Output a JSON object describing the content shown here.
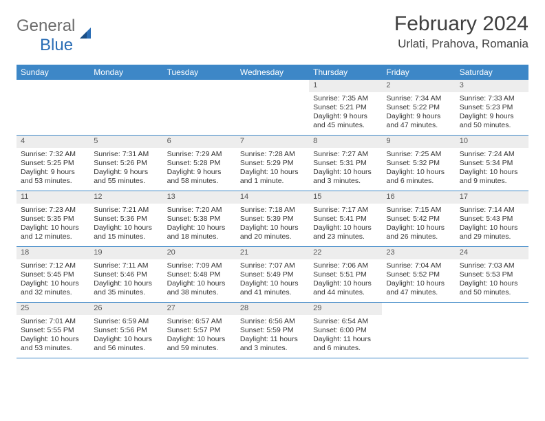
{
  "logo": {
    "text1": "General",
    "text2": "Blue"
  },
  "title": "February 2024",
  "location": "Urlati, Prahova, Romania",
  "colors": {
    "header_bg": "#3d87c7",
    "daynum_bg": "#ededed",
    "row_border": "#3d87c7",
    "logo_gray": "#6b6b6b",
    "logo_blue": "#2a6db5"
  },
  "weekdays": [
    "Sunday",
    "Monday",
    "Tuesday",
    "Wednesday",
    "Thursday",
    "Friday",
    "Saturday"
  ],
  "weeks": [
    [
      null,
      null,
      null,
      null,
      {
        "n": "1",
        "sr": "Sunrise: 7:35 AM",
        "ss": "Sunset: 5:21 PM",
        "d1": "Daylight: 9 hours",
        "d2": "and 45 minutes."
      },
      {
        "n": "2",
        "sr": "Sunrise: 7:34 AM",
        "ss": "Sunset: 5:22 PM",
        "d1": "Daylight: 9 hours",
        "d2": "and 47 minutes."
      },
      {
        "n": "3",
        "sr": "Sunrise: 7:33 AM",
        "ss": "Sunset: 5:23 PM",
        "d1": "Daylight: 9 hours",
        "d2": "and 50 minutes."
      }
    ],
    [
      {
        "n": "4",
        "sr": "Sunrise: 7:32 AM",
        "ss": "Sunset: 5:25 PM",
        "d1": "Daylight: 9 hours",
        "d2": "and 53 minutes."
      },
      {
        "n": "5",
        "sr": "Sunrise: 7:31 AM",
        "ss": "Sunset: 5:26 PM",
        "d1": "Daylight: 9 hours",
        "d2": "and 55 minutes."
      },
      {
        "n": "6",
        "sr": "Sunrise: 7:29 AM",
        "ss": "Sunset: 5:28 PM",
        "d1": "Daylight: 9 hours",
        "d2": "and 58 minutes."
      },
      {
        "n": "7",
        "sr": "Sunrise: 7:28 AM",
        "ss": "Sunset: 5:29 PM",
        "d1": "Daylight: 10 hours",
        "d2": "and 1 minute."
      },
      {
        "n": "8",
        "sr": "Sunrise: 7:27 AM",
        "ss": "Sunset: 5:31 PM",
        "d1": "Daylight: 10 hours",
        "d2": "and 3 minutes."
      },
      {
        "n": "9",
        "sr": "Sunrise: 7:25 AM",
        "ss": "Sunset: 5:32 PM",
        "d1": "Daylight: 10 hours",
        "d2": "and 6 minutes."
      },
      {
        "n": "10",
        "sr": "Sunrise: 7:24 AM",
        "ss": "Sunset: 5:34 PM",
        "d1": "Daylight: 10 hours",
        "d2": "and 9 minutes."
      }
    ],
    [
      {
        "n": "11",
        "sr": "Sunrise: 7:23 AM",
        "ss": "Sunset: 5:35 PM",
        "d1": "Daylight: 10 hours",
        "d2": "and 12 minutes."
      },
      {
        "n": "12",
        "sr": "Sunrise: 7:21 AM",
        "ss": "Sunset: 5:36 PM",
        "d1": "Daylight: 10 hours",
        "d2": "and 15 minutes."
      },
      {
        "n": "13",
        "sr": "Sunrise: 7:20 AM",
        "ss": "Sunset: 5:38 PM",
        "d1": "Daylight: 10 hours",
        "d2": "and 18 minutes."
      },
      {
        "n": "14",
        "sr": "Sunrise: 7:18 AM",
        "ss": "Sunset: 5:39 PM",
        "d1": "Daylight: 10 hours",
        "d2": "and 20 minutes."
      },
      {
        "n": "15",
        "sr": "Sunrise: 7:17 AM",
        "ss": "Sunset: 5:41 PM",
        "d1": "Daylight: 10 hours",
        "d2": "and 23 minutes."
      },
      {
        "n": "16",
        "sr": "Sunrise: 7:15 AM",
        "ss": "Sunset: 5:42 PM",
        "d1": "Daylight: 10 hours",
        "d2": "and 26 minutes."
      },
      {
        "n": "17",
        "sr": "Sunrise: 7:14 AM",
        "ss": "Sunset: 5:43 PM",
        "d1": "Daylight: 10 hours",
        "d2": "and 29 minutes."
      }
    ],
    [
      {
        "n": "18",
        "sr": "Sunrise: 7:12 AM",
        "ss": "Sunset: 5:45 PM",
        "d1": "Daylight: 10 hours",
        "d2": "and 32 minutes."
      },
      {
        "n": "19",
        "sr": "Sunrise: 7:11 AM",
        "ss": "Sunset: 5:46 PM",
        "d1": "Daylight: 10 hours",
        "d2": "and 35 minutes."
      },
      {
        "n": "20",
        "sr": "Sunrise: 7:09 AM",
        "ss": "Sunset: 5:48 PM",
        "d1": "Daylight: 10 hours",
        "d2": "and 38 minutes."
      },
      {
        "n": "21",
        "sr": "Sunrise: 7:07 AM",
        "ss": "Sunset: 5:49 PM",
        "d1": "Daylight: 10 hours",
        "d2": "and 41 minutes."
      },
      {
        "n": "22",
        "sr": "Sunrise: 7:06 AM",
        "ss": "Sunset: 5:51 PM",
        "d1": "Daylight: 10 hours",
        "d2": "and 44 minutes."
      },
      {
        "n": "23",
        "sr": "Sunrise: 7:04 AM",
        "ss": "Sunset: 5:52 PM",
        "d1": "Daylight: 10 hours",
        "d2": "and 47 minutes."
      },
      {
        "n": "24",
        "sr": "Sunrise: 7:03 AM",
        "ss": "Sunset: 5:53 PM",
        "d1": "Daylight: 10 hours",
        "d2": "and 50 minutes."
      }
    ],
    [
      {
        "n": "25",
        "sr": "Sunrise: 7:01 AM",
        "ss": "Sunset: 5:55 PM",
        "d1": "Daylight: 10 hours",
        "d2": "and 53 minutes."
      },
      {
        "n": "26",
        "sr": "Sunrise: 6:59 AM",
        "ss": "Sunset: 5:56 PM",
        "d1": "Daylight: 10 hours",
        "d2": "and 56 minutes."
      },
      {
        "n": "27",
        "sr": "Sunrise: 6:57 AM",
        "ss": "Sunset: 5:57 PM",
        "d1": "Daylight: 10 hours",
        "d2": "and 59 minutes."
      },
      {
        "n": "28",
        "sr": "Sunrise: 6:56 AM",
        "ss": "Sunset: 5:59 PM",
        "d1": "Daylight: 11 hours",
        "d2": "and 3 minutes."
      },
      {
        "n": "29",
        "sr": "Sunrise: 6:54 AM",
        "ss": "Sunset: 6:00 PM",
        "d1": "Daylight: 11 hours",
        "d2": "and 6 minutes."
      },
      null,
      null
    ]
  ]
}
